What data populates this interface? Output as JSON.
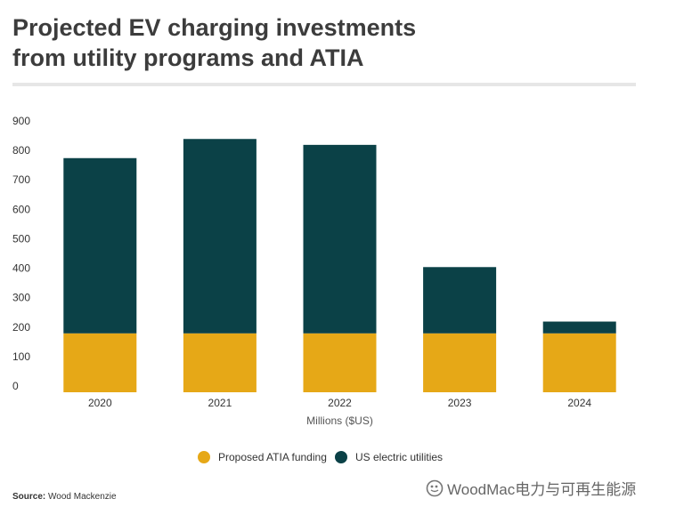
{
  "title_line1": "Projected EV charging investments",
  "title_line2": "from utility programs and ATIA",
  "source_label": "Source:",
  "source_value": "Wood Mackenzie",
  "watermark_text": "WoodMac电力与可再生能源",
  "chart_data": {
    "type": "bar",
    "stacked": true,
    "title": "Projected EV charging investments from utility programs and ATIA",
    "xlabel": "Millions ($US)",
    "ylabel": "",
    "ylim": [
      0,
      900
    ],
    "yticks": [
      0,
      100,
      200,
      300,
      400,
      500,
      600,
      700,
      800,
      900
    ],
    "grid": false,
    "legend_position": "bottom",
    "categories": [
      "2020",
      "2021",
      "2022",
      "2023",
      "2024"
    ],
    "series": [
      {
        "name": "Proposed ATIA funding",
        "color": "#e6a817",
        "values": [
          200,
          200,
          200,
          200,
          200
        ]
      },
      {
        "name": "US electric utilities",
        "color": "#0b4147",
        "values": [
          595,
          660,
          640,
          225,
          40
        ]
      }
    ]
  }
}
